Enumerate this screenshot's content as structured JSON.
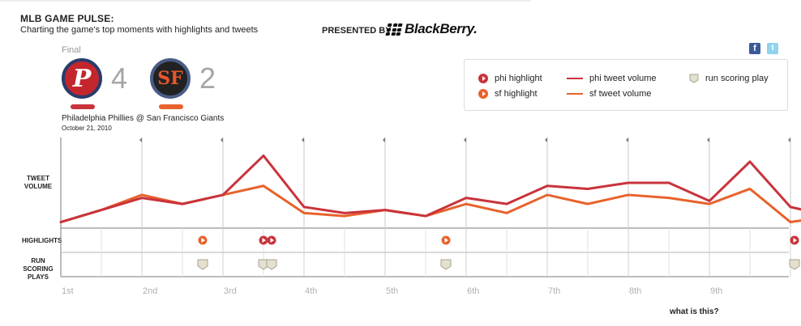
{
  "header": {
    "title": "MLB GAME PULSE:",
    "subtitle": "Charting the game's top moments with highlights and tweets",
    "presented_by": "PRESENTED BY",
    "sponsor": "BlackBerry."
  },
  "social": {
    "facebook": "f",
    "twitter": "t"
  },
  "game": {
    "status": "Final",
    "matchup": "Philadelphia Phillies @ San Francisco Giants",
    "date": "October 21, 2010",
    "teams": [
      {
        "abbr": "phi",
        "logo_letter": "P",
        "score": "4",
        "color": "#c9333b"
      },
      {
        "abbr": "sf",
        "logo_letter": "SF",
        "score": "2",
        "color": "#e8622c"
      }
    ]
  },
  "legend": {
    "phi_highlight": "phi highlight",
    "sf_highlight": "sf highlight",
    "phi_tweet_volume": "phi tweet volume",
    "sf_tweet_volume": "sf tweet volume",
    "run_scoring_play": "run scoring play"
  },
  "rows": {
    "tweet_volume": "TWEET VOLUME",
    "highlights": "HIGHLIGHTS",
    "run_scoring": "RUN SCORING PLAYS"
  },
  "chart_data": {
    "type": "line",
    "x": [
      0,
      0.5,
      1,
      1.5,
      2,
      2.5,
      3,
      3.5,
      4,
      4.5,
      5,
      5.5,
      6,
      6.5,
      7,
      7.5,
      8,
      8.5,
      9,
      9.5
    ],
    "categories": [
      "1st",
      "2nd",
      "3rd",
      "4th",
      "5th",
      "6th",
      "7th",
      "8th",
      "9th"
    ],
    "series": [
      {
        "name": "phi tweet volume",
        "color": "#c9333b",
        "values": [
          2,
          6,
          10,
          8,
          11,
          24,
          7,
          5,
          6,
          4,
          10,
          8,
          14,
          13,
          15,
          15,
          9,
          22,
          7,
          4
        ]
      },
      {
        "name": "sf tweet volume",
        "color": "#e8622c",
        "values": [
          2,
          6,
          11,
          8,
          11,
          14,
          5,
          4,
          6,
          4,
          8,
          5,
          11,
          8,
          11,
          10,
          8,
          13,
          2,
          4
        ]
      }
    ],
    "ylim": [
      0,
      30
    ],
    "highlights": [
      {
        "team": "sf",
        "inning": 1.75
      },
      {
        "team": "phi",
        "inning": 2.5
      },
      {
        "team": "phi",
        "inning": 2.6
      },
      {
        "team": "sf",
        "inning": 4.75
      },
      {
        "team": "phi",
        "inning": 9.05
      }
    ],
    "run_scoring_plays": [
      1.75,
      2.5,
      2.6,
      4.75,
      9.05
    ]
  },
  "footer": {
    "what_is_this": "what is this?"
  }
}
